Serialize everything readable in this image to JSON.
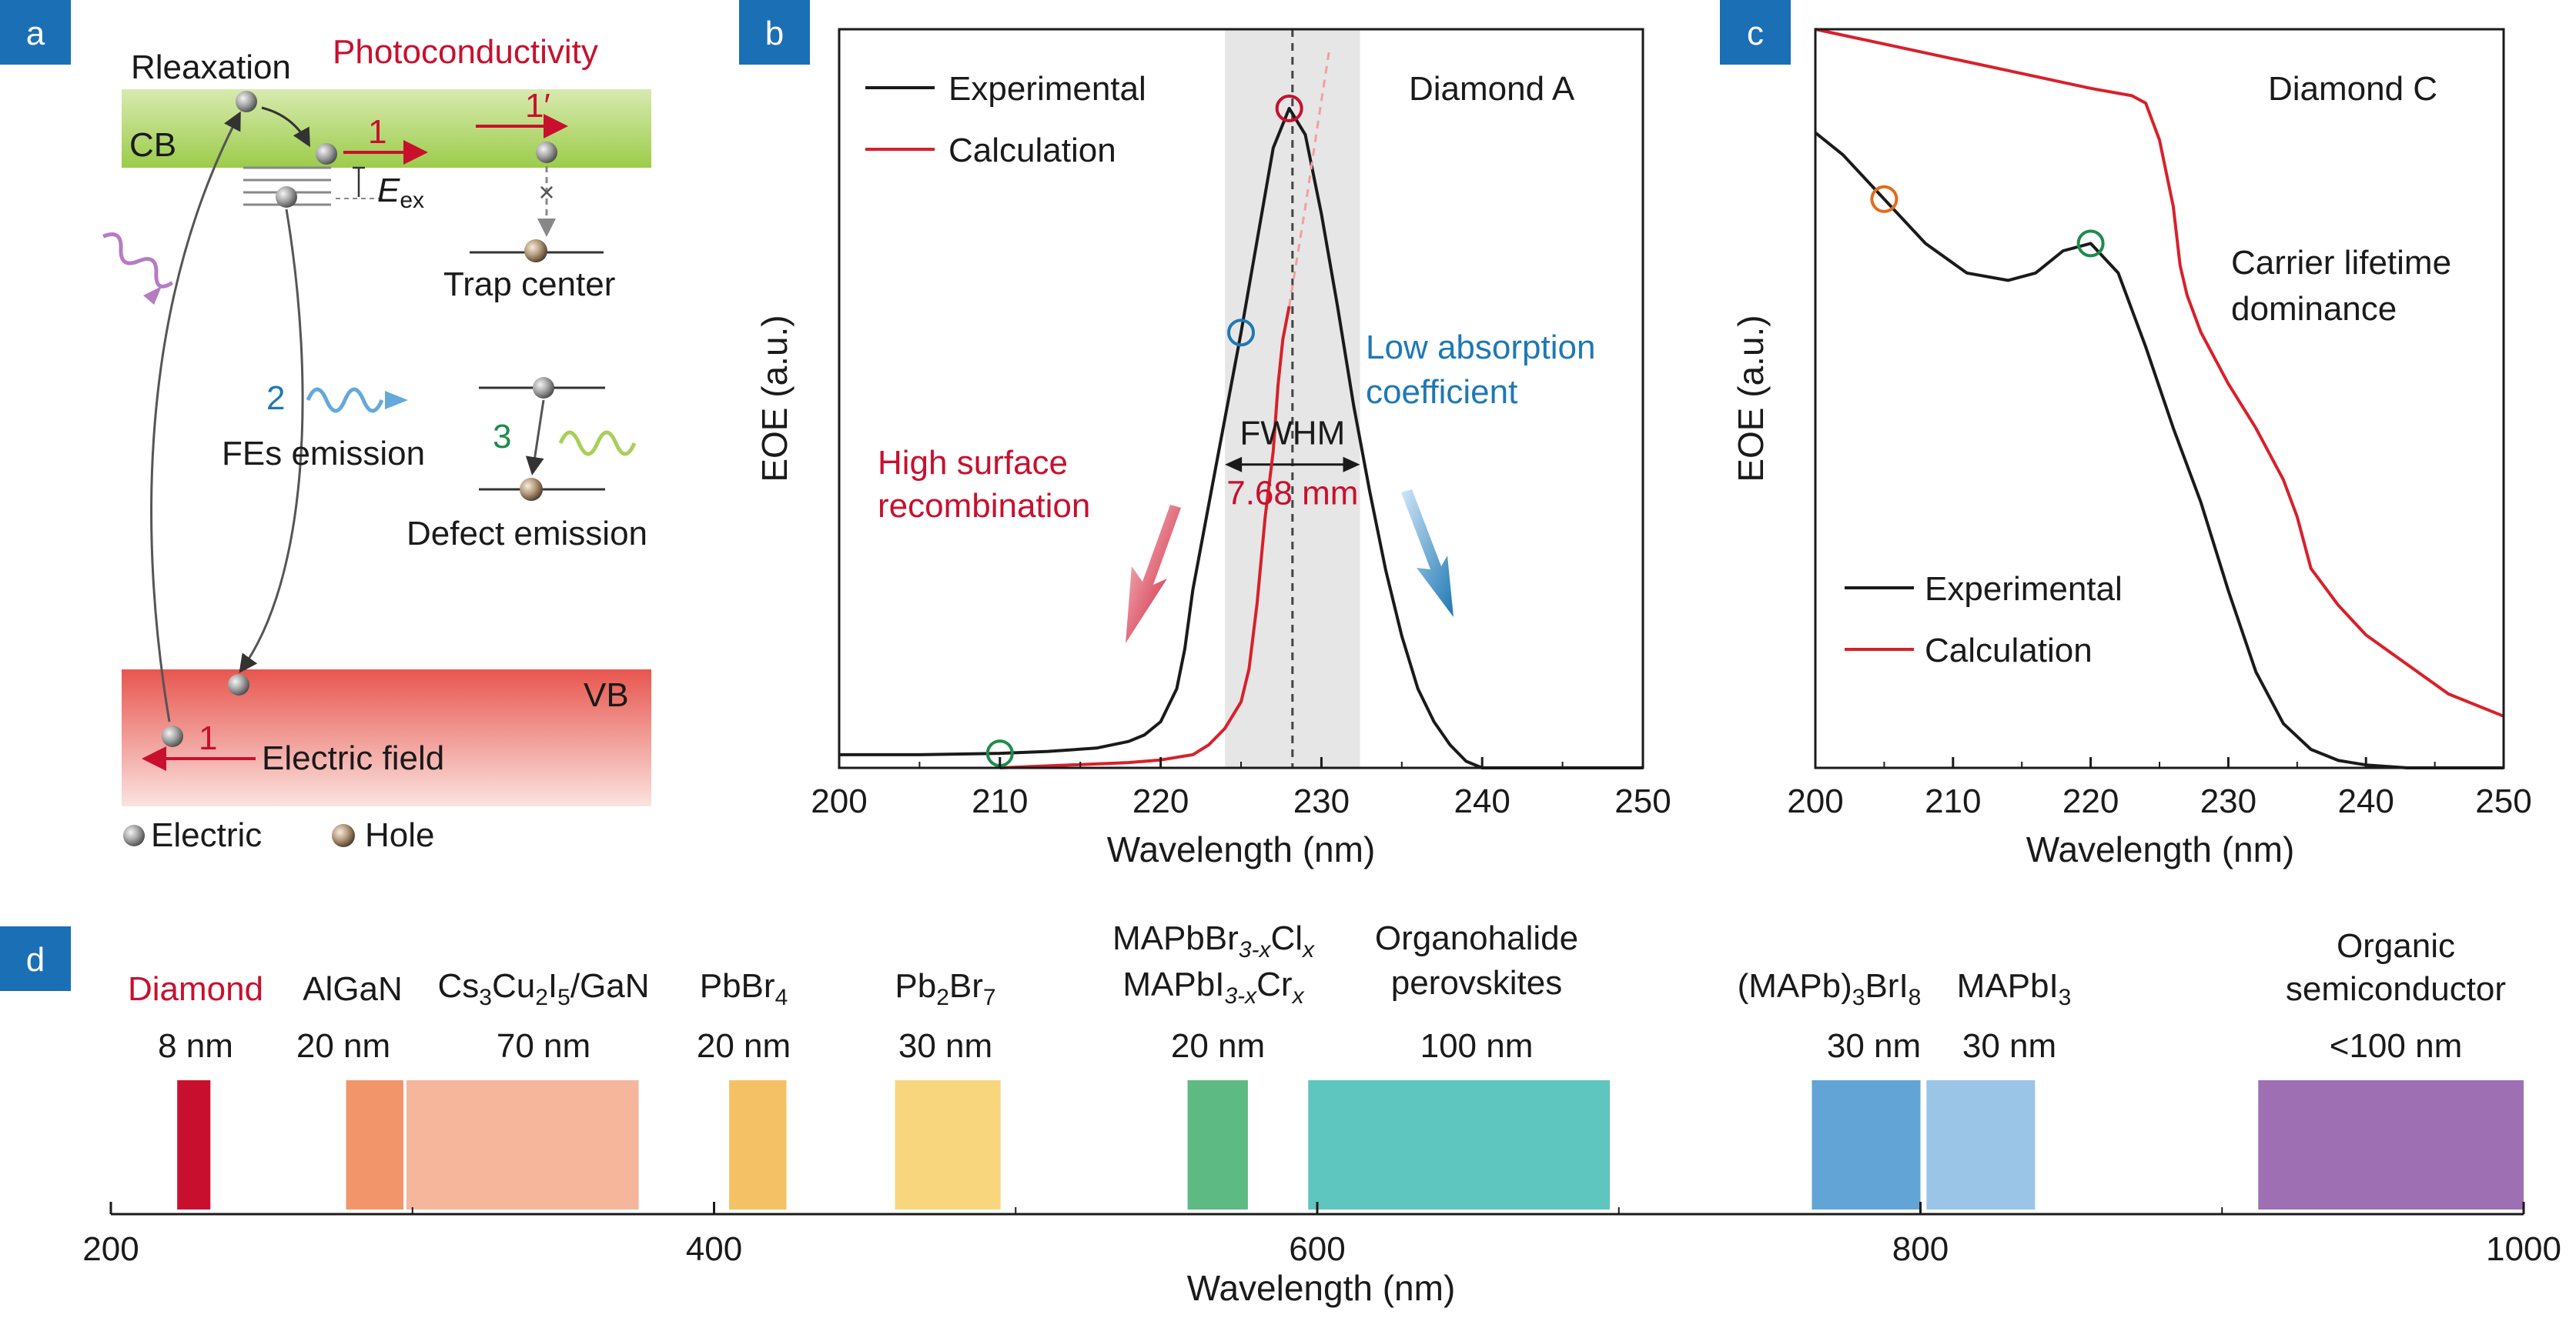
{
  "panel_labels": {
    "a": "a",
    "b": "b",
    "c": "c",
    "d": "d"
  },
  "colors": {
    "label_bg": "#1a6fb5",
    "cb_band": "#9ccc4a",
    "vb_band": "#e8564f",
    "red": "#c8102e",
    "blue": "#1f78b4",
    "green": "#1e8c4a",
    "orange": "#e36b1c",
    "purple_wave": "#b57cc2",
    "lightblue_wave": "#64a8dc",
    "lightgreen_wave": "#a8cf5a",
    "shade": "#e6e6e6"
  },
  "panel_a": {
    "relaxation": "Rleaxation",
    "photoconductivity": "Photoconductivity",
    "cb": "CB",
    "vb": "VB",
    "arrow_1": "1",
    "arrow_1_prime": "1′",
    "arrow_1_vb": "1",
    "eex_main": "E",
    "eex_sub": "ex",
    "trap_center": "Trap center",
    "cross": "×",
    "fes_number": "2",
    "fes_emission": "FEs emission",
    "defect_number": "3",
    "defect_emission": "Defect emission",
    "electric_field": "Electric field",
    "legend_electric": "Electric",
    "legend_hole": "Hole"
  },
  "chart_data": [
    {
      "type": "line",
      "panel": "b",
      "xlabel": "Wavelength (nm)",
      "ylabel": "EOE (a.u.)",
      "xlim": [
        200,
        250
      ],
      "ylim": [
        0,
        1.12
      ],
      "xticks": [
        200,
        210,
        220,
        230,
        240,
        250
      ],
      "legend": [
        "Experimental",
        "Calculation"
      ],
      "sample": "Diamond A",
      "series": [
        {
          "name": "Experimental",
          "color": "#1a1a1a",
          "x": [
            200,
            205,
            210,
            213,
            216,
            218,
            219,
            220,
            221,
            221.5,
            222,
            223,
            224,
            225,
            226,
            227,
            228,
            229,
            230,
            231,
            232,
            233,
            234,
            235,
            236,
            237,
            238,
            239,
            240,
            242,
            245,
            250
          ],
          "y": [
            0.02,
            0.02,
            0.022,
            0.025,
            0.03,
            0.04,
            0.05,
            0.07,
            0.12,
            0.18,
            0.27,
            0.4,
            0.53,
            0.66,
            0.8,
            0.94,
            1.0,
            0.96,
            0.84,
            0.7,
            0.55,
            0.42,
            0.3,
            0.2,
            0.12,
            0.07,
            0.035,
            0.01,
            0.0,
            0.0,
            0.0,
            0.0
          ]
        },
        {
          "name": "Calculation",
          "color": "#d8202a",
          "x": [
            210,
            212,
            215,
            218,
            220,
            222,
            223,
            224,
            225,
            225.5,
            226,
            226.5,
            227,
            227.3,
            227.6,
            228
          ],
          "y": [
            0.0,
            0.002,
            0.005,
            0.008,
            0.012,
            0.02,
            0.035,
            0.06,
            0.1,
            0.15,
            0.25,
            0.38,
            0.48,
            0.58,
            0.65,
            0.7
          ]
        },
        {
          "name": "",
          "color": "#f0a0a0",
          "style": "dashed",
          "x": [
            228,
            229,
            229.8,
            230.5
          ],
          "y": [
            0.7,
            0.85,
            0.98,
            1.09
          ]
        }
      ],
      "shaded_region": [
        224,
        232.4
      ],
      "center_line": 228.2,
      "markers": [
        {
          "x": 210,
          "y": 0.022,
          "color": "#1e8c4a"
        },
        {
          "x": 225,
          "y": 0.66,
          "color": "#1f78b4"
        },
        {
          "x": 228,
          "y": 1.0,
          "color": "#c8102e"
        }
      ],
      "fwhm_label": "FWHM",
      "fwhm_value": "7.68 mm",
      "annotation_left": [
        "High surface",
        "recombination"
      ],
      "annotation_right": [
        "Low absorption",
        "coefficient"
      ]
    },
    {
      "type": "line",
      "panel": "c",
      "xlabel": "Wavelength (nm)",
      "ylabel": "EOE (a.u.)",
      "xlim": [
        200,
        250
      ],
      "ylim": [
        0,
        1.0
      ],
      "xticks": [
        200,
        210,
        220,
        230,
        240,
        250
      ],
      "legend": [
        "Experimental",
        "Calculation"
      ],
      "sample": "Diamond C",
      "annotation": [
        "Carrier lifetime",
        "dominance"
      ],
      "series": [
        {
          "name": "Experimental",
          "color": "#1a1a1a",
          "x": [
            200,
            202,
            205,
            208,
            211,
            214,
            216,
            218,
            220,
            222,
            224,
            226,
            228,
            230,
            232,
            234,
            236,
            238,
            240,
            243,
            246,
            250
          ],
          "y": [
            0.86,
            0.83,
            0.77,
            0.71,
            0.67,
            0.66,
            0.67,
            0.7,
            0.71,
            0.67,
            0.57,
            0.46,
            0.36,
            0.24,
            0.13,
            0.06,
            0.025,
            0.01,
            0.004,
            0.0,
            0.0,
            0.0
          ]
        },
        {
          "name": "Calculation",
          "color": "#d8202a",
          "x": [
            200,
            205,
            210,
            215,
            220,
            223,
            224,
            225,
            226,
            226.5,
            227,
            228,
            230,
            232,
            234,
            235,
            236,
            238,
            240,
            243,
            246,
            250
          ],
          "y": [
            1.0,
            0.98,
            0.96,
            0.94,
            0.92,
            0.91,
            0.9,
            0.85,
            0.76,
            0.68,
            0.64,
            0.59,
            0.52,
            0.46,
            0.39,
            0.34,
            0.27,
            0.22,
            0.18,
            0.14,
            0.1,
            0.07
          ]
        }
      ],
      "markers": [
        {
          "x": 205,
          "y": 0.77,
          "color": "#e36b1c"
        },
        {
          "x": 220,
          "y": 0.71,
          "color": "#1e8c4a"
        }
      ]
    },
    {
      "type": "bar",
      "panel": "d",
      "xlabel": "Wavelength (nm)",
      "xlim": [
        200,
        1000
      ],
      "xticks": [
        200,
        400,
        600,
        800,
        1000
      ],
      "bars": [
        {
          "start": 222,
          "end": 233,
          "color": "#c8102e",
          "label": "Diamond",
          "value": "8 nm",
          "label_red": true
        },
        {
          "start": 278,
          "end": 297,
          "color": "#f2956b",
          "label": "AlGaN",
          "value": "20 nm"
        },
        {
          "start": 298,
          "end": 375,
          "color": "#f6b69b",
          "label": "Cs3Cu2I5/GaN",
          "value": "70 nm"
        },
        {
          "start": 405,
          "end": 424,
          "color": "#f4c164",
          "label": "PbBr4",
          "value": "20 nm"
        },
        {
          "start": 460,
          "end": 495,
          "color": "#f8d67e",
          "label": "Pb2Br7",
          "value": "30 nm"
        },
        {
          "start": 557,
          "end": 577,
          "color": "#5dba83",
          "label": "MAPbBr3-xClx / MAPbI3-xCrx",
          "value": "20 nm"
        },
        {
          "start": 597,
          "end": 697,
          "color": "#5fc5bf",
          "label": "Organohalide perovskites",
          "value": "100 nm"
        },
        {
          "start": 764,
          "end": 800,
          "color": "#62a4d6",
          "label": "(MAPb)3BrI8",
          "value": "30 nm"
        },
        {
          "start": 802,
          "end": 838,
          "color": "#9ac5e6",
          "label": "MAPbI3",
          "value": "30 nm"
        },
        {
          "start": 912,
          "end": 1000,
          "color": "#9e6fb3",
          "label": "Organic semiconductor",
          "value": "<100 nm"
        }
      ],
      "labels": {
        "diamond": "Diamond",
        "algan": "AlGaN",
        "cs_base1": "Cs",
        "cs_sub1": "3",
        "cs_base2": "Cu",
        "cs_sub2": "2",
        "cs_base3": "I",
        "cs_sub3": "5",
        "cs_base4": "/GaN",
        "pbbr4_base": "PbBr",
        "pbbr4_sub": "4",
        "pb2br7_base1": "Pb",
        "pb2br7_sub1": "2",
        "pb2br7_base2": "Br",
        "pb2br7_sub2": "7",
        "mapbbr_base1": "MAPbBr",
        "mapbbr_sub1": "3-x",
        "mapbbr_base2": "Cl",
        "mapbbr_sub2": "x",
        "mapbi_base1": "MAPbI",
        "mapbi_sub1": "3-x",
        "mapbi_base2": "Cr",
        "mapbi_sub2": "x",
        "organohalide": "Organohalide",
        "perovskites": "perovskites",
        "mapb3_base1": "(MAPb)",
        "mapb3_sub1": "3",
        "mapb3_base2": "BrI",
        "mapb3_sub2": "8",
        "mapbi3_base": "MAPbI",
        "mapbi3_sub": "3",
        "organic": "Organic",
        "semiconductor": "semiconductor",
        "v_diamond": "8 nm",
        "v_algan": "20 nm",
        "v_cs": "70 nm",
        "v_pbbr4": "20 nm",
        "v_pb2br7": "30 nm",
        "v_mapb": "20 nm",
        "v_organo": "100 nm",
        "v_mapb3": "30 nm",
        "v_mapbi3": "30 nm",
        "v_organic": "<100 nm"
      }
    }
  ]
}
